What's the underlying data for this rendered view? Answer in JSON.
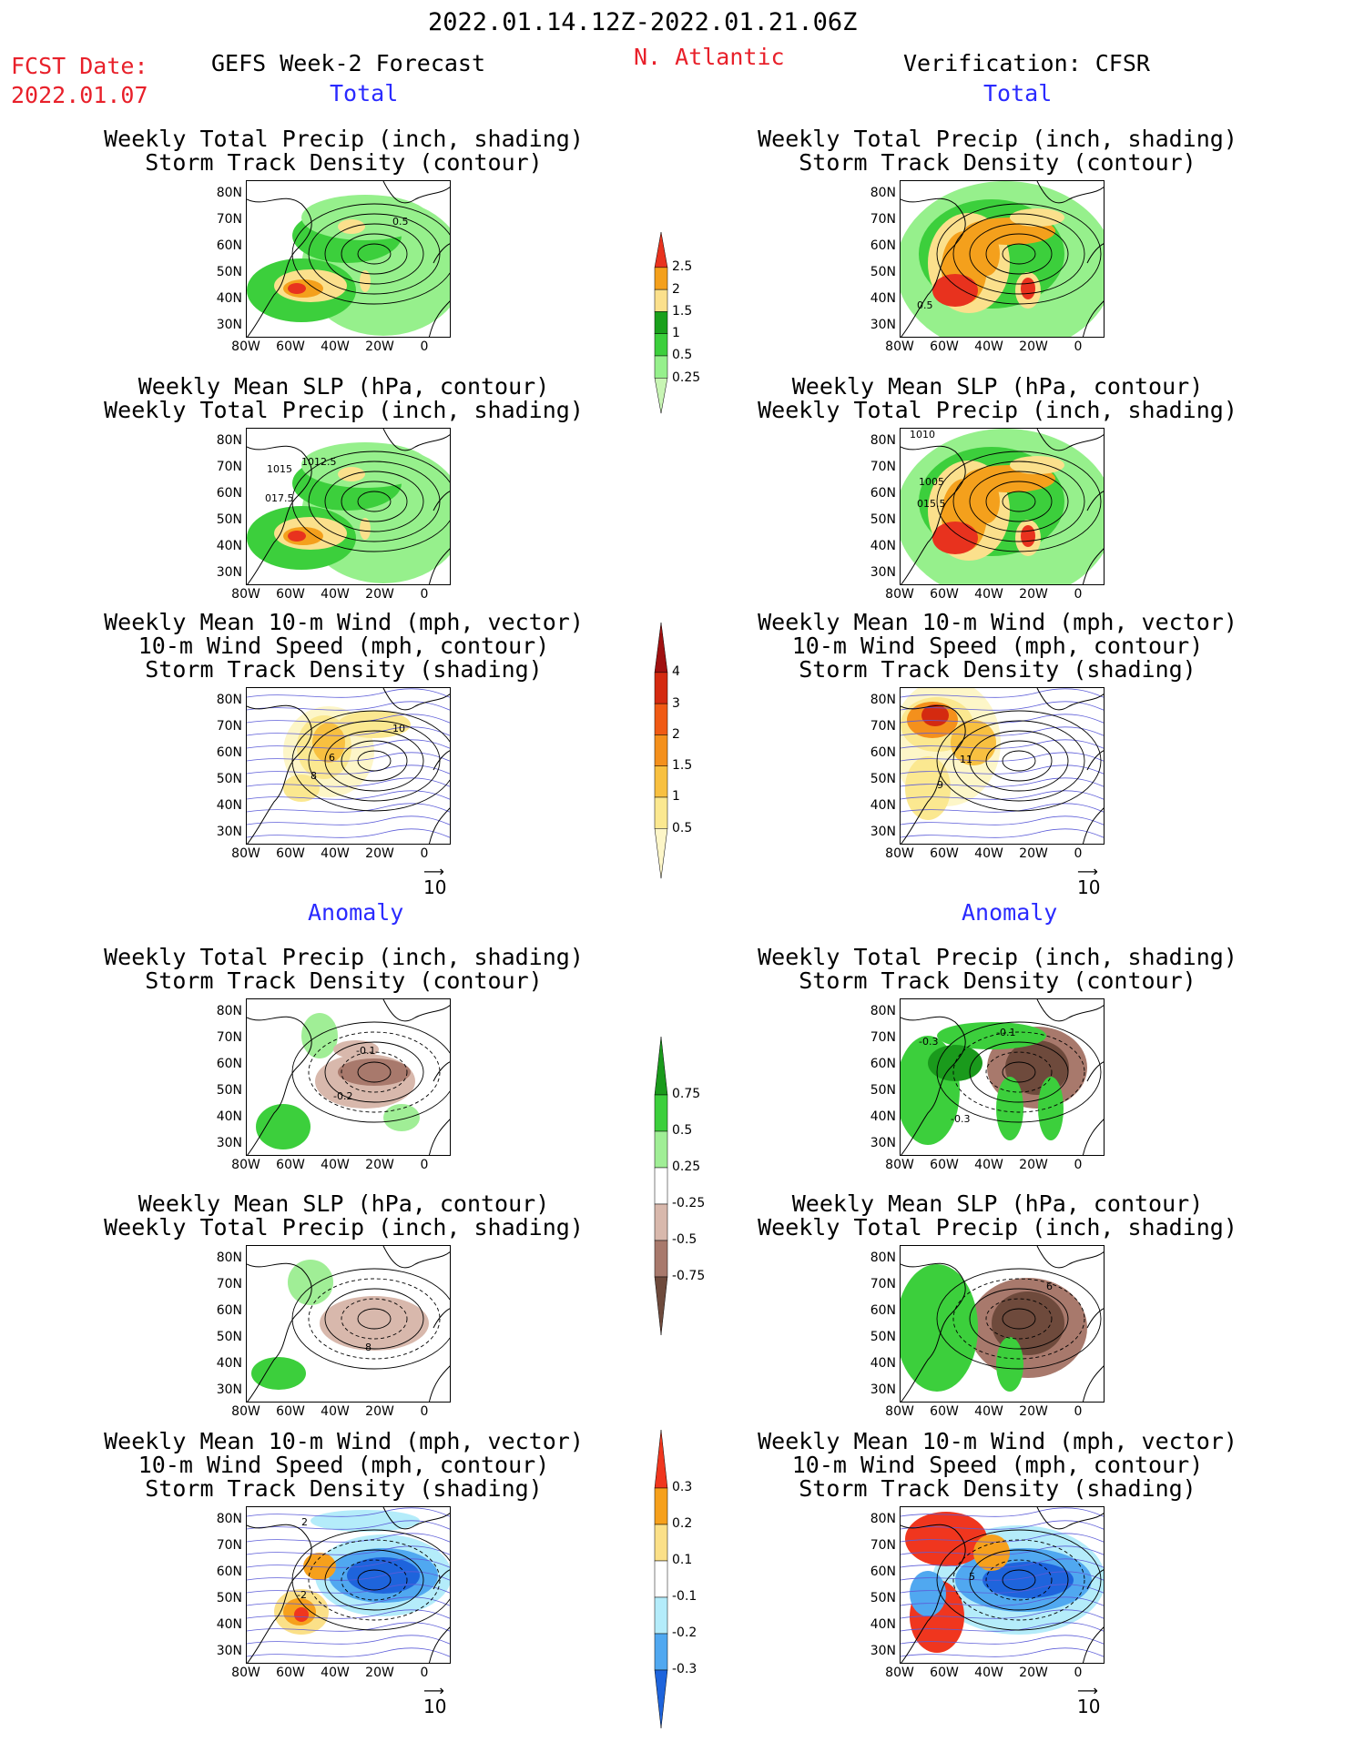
{
  "header": {
    "period": "2022.01.14.12Z-2022.01.21.06Z",
    "fcst_label": "FCST Date:",
    "fcst_date": "2022.01.07",
    "forecast_title": "GEFS Week-2 Forecast",
    "region": "N. Atlantic",
    "verification": "Verification: CFSR"
  },
  "sections": {
    "total": "Total",
    "anomaly": "Anomaly"
  },
  "titles": {
    "precip_track": [
      "Weekly Total Precip (inch, shading)",
      "Storm Track Density (contour)"
    ],
    "slp_precip": [
      "Weekly Mean SLP (hPa, contour)",
      "Weekly Total Precip (inch, shading)"
    ],
    "wind_track": [
      "Weekly Mean 10-m Wind (mph, vector)",
      "10-m Wind Speed (mph, contour)",
      "Storm Track Density (shading)"
    ]
  },
  "axes": {
    "lat_labels": [
      "80N",
      "70N",
      "60N",
      "50N",
      "40N",
      "30N"
    ],
    "lon_labels": [
      "80W",
      "60W",
      "40W",
      "20W",
      "0"
    ]
  },
  "vector_ref": "10",
  "colorbars": {
    "precip_total": {
      "labels": [
        "2.5",
        "2",
        "1.5",
        "1",
        "0.5",
        "0.25"
      ],
      "colors": [
        "#e8321e",
        "#f4a01c",
        "#fbe08c",
        "#1aa01c",
        "#3ccf3c",
        "#96f08c",
        "#c8f5b4"
      ]
    },
    "track_total": {
      "labels": [
        "4",
        "3",
        "2",
        "1.5",
        "1",
        "0.5"
      ],
      "colors": [
        "#a01010",
        "#d42a10",
        "#f05a14",
        "#f4901c",
        "#f8c040",
        "#fbe890",
        "#fdf6c8"
      ]
    },
    "precip_anom": {
      "labels": [
        "0.75",
        "0.5",
        "0.25",
        "-0.25",
        "-0.5",
        "-0.75"
      ],
      "colors": [
        "#1a9a1c",
        "#3ccf3c",
        "#a0ee96",
        "#ffffff",
        "#d8b8ac",
        "#a8796c",
        "#6e4a3c"
      ]
    },
    "track_anom": {
      "labels": [
        "0.3",
        "0.2",
        "0.1",
        "-0.1",
        "-0.2",
        "-0.3"
      ],
      "colors": [
        "#f0361e",
        "#f6a01c",
        "#fbe088",
        "#ffffff",
        "#b4ecfa",
        "#50a8f0",
        "#1e64dc"
      ]
    }
  },
  "panel_annotations": {
    "gefs_total_precip": "0.5",
    "cfsr_total_precip": "0.5",
    "gefs_total_slp": [
      "1012.5",
      "1015",
      "017.5"
    ],
    "cfsr_total_slp": [
      "1010",
      "1005",
      "015.5"
    ],
    "gefs_total_wind": [
      "10",
      "6",
      "8"
    ],
    "cfsr_total_wind": [
      "11",
      "9"
    ],
    "gefs_anom_precip": [
      "-0.1",
      "-0.2"
    ],
    "cfsr_anom_precip": [
      "-0.1",
      "-0.3",
      "-0.3"
    ],
    "gefs_anom_slp": "8",
    "cfsr_anom_slp": "6",
    "gefs_anom_wind": [
      "2",
      "-2"
    ],
    "cfsr_anom_wind": [
      "5"
    ]
  }
}
